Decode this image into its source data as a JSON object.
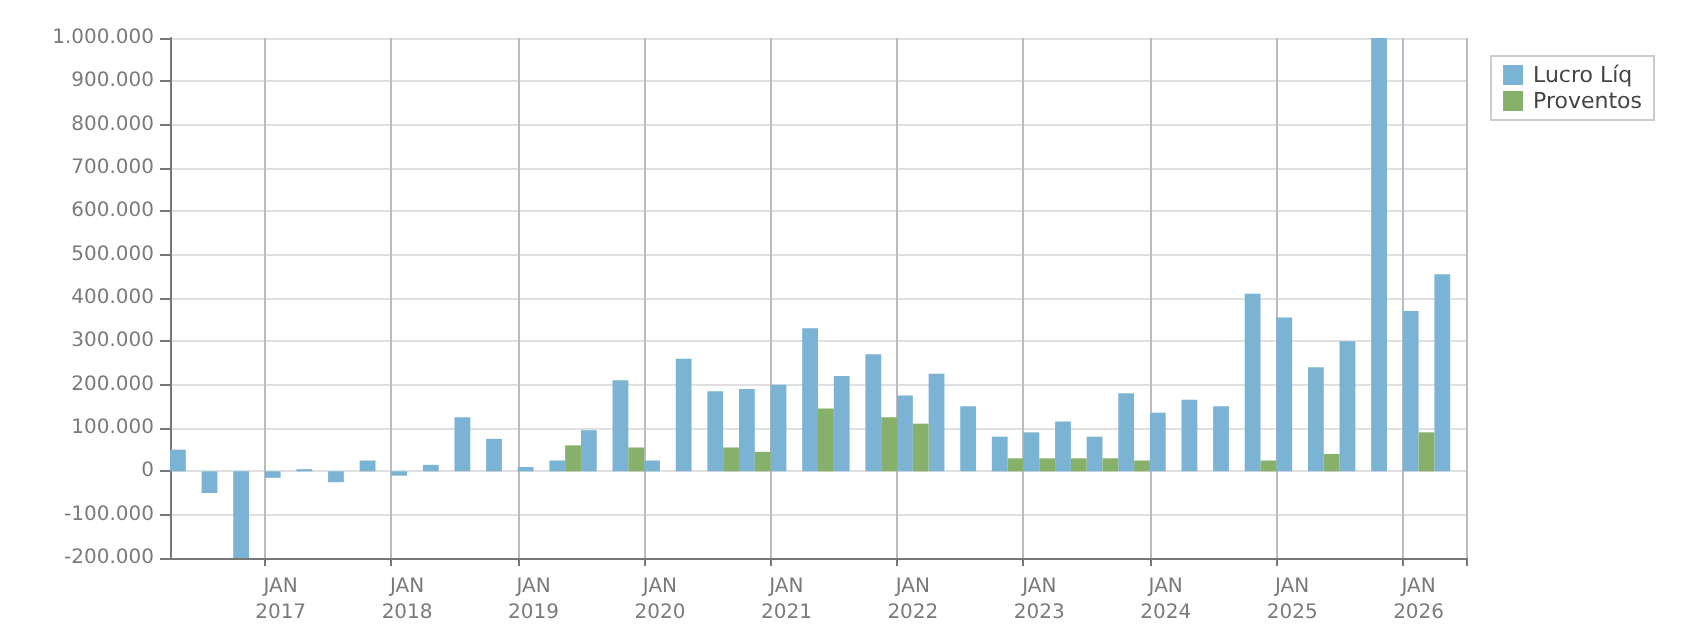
{
  "chart_data": {
    "type": "bar",
    "categories": [
      null,
      null,
      null,
      "JAN 2017",
      null,
      null,
      null,
      "JAN 2018",
      null,
      null,
      null,
      "JAN 2019",
      null,
      null,
      null,
      "JAN 2020",
      null,
      null,
      null,
      "JAN 2021",
      null,
      null,
      null,
      "JAN 2022",
      null,
      null,
      null,
      "JAN 2023",
      null,
      null,
      null,
      "JAN 2024",
      null,
      null,
      null,
      "JAN 2025",
      null,
      null,
      null,
      "JAN 2026",
      null
    ],
    "series": [
      {
        "name": "Lucro Líq",
        "color": "#7ab3d4",
        "values": [
          50000,
          -50000,
          -200000,
          -15000,
          5000,
          -25000,
          25000,
          -10000,
          15000,
          125000,
          75000,
          10000,
          25000,
          95000,
          210000,
          25000,
          260000,
          185000,
          190000,
          200000,
          330000,
          220000,
          270000,
          175000,
          225000,
          150000,
          80000,
          90000,
          115000,
          80000,
          180000,
          135000,
          165000,
          150000,
          410000,
          355000,
          240000,
          300000,
          1000000,
          370000,
          455000
        ]
      },
      {
        "name": "Proventos",
        "color": "#87b06a",
        "values": [
          0,
          0,
          0,
          0,
          0,
          0,
          0,
          0,
          0,
          0,
          0,
          0,
          60000,
          0,
          55000,
          0,
          0,
          55000,
          45000,
          0,
          145000,
          0,
          125000,
          110000,
          0,
          0,
          30000,
          30000,
          30000,
          30000,
          25000,
          0,
          0,
          0,
          25000,
          0,
          40000,
          0,
          0,
          90000,
          0
        ]
      }
    ],
    "ylim": [
      -200000,
      1000000
    ],
    "yticks": [
      {
        "value": -200000,
        "label": "-200.000"
      },
      {
        "value": -100000,
        "label": "-100.000"
      },
      {
        "value": 0,
        "label": "0"
      },
      {
        "value": 100000,
        "label": "100.000"
      },
      {
        "value": 200000,
        "label": "200.000"
      },
      {
        "value": 300000,
        "label": "300.000"
      },
      {
        "value": 400000,
        "label": "400.000"
      },
      {
        "value": 500000,
        "label": "500.000"
      },
      {
        "value": 600000,
        "label": "600.000"
      },
      {
        "value": 700000,
        "label": "700.000"
      },
      {
        "value": 800000,
        "label": "800.000"
      },
      {
        "value": 900000,
        "label": "900.000"
      },
      {
        "value": 1000000,
        "label": "1.000.000"
      }
    ],
    "grid": true,
    "legend": "top right"
  }
}
